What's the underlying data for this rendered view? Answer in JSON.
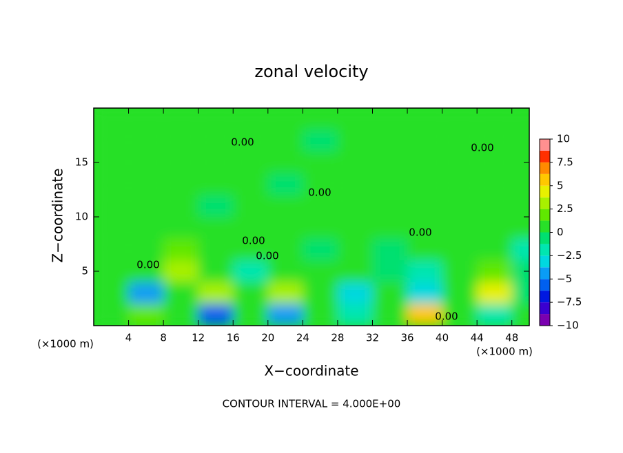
{
  "chart_data": {
    "type": "contour",
    "title": "zonal velocity",
    "xlabel": "X−coordinate",
    "ylabel": "Z−coordinate",
    "x_unit_label": "(×1000 m)",
    "footer": "CONTOUR INTERVAL = 4.000E+00",
    "xlim": [
      0,
      50
    ],
    "ylim": [
      0,
      20
    ],
    "xticks": [
      4,
      8,
      12,
      16,
      20,
      24,
      28,
      32,
      36,
      40,
      44,
      48
    ],
    "yticks": [
      5,
      10,
      15
    ],
    "x": [
      2,
      6,
      10,
      14,
      18,
      22,
      26,
      30,
      34,
      38,
      42,
      46,
      50
    ],
    "y": [
      1,
      3,
      5,
      7,
      9,
      11,
      13,
      15,
      17,
      19
    ],
    "z": [
      [
        0.5,
        2,
        1,
        -6,
        1,
        -4,
        1,
        -2,
        0.5,
        6,
        0,
        -2,
        1
      ],
      [
        0,
        -4,
        1,
        2.5,
        1,
        3,
        0.5,
        -3,
        1,
        -3,
        0.5,
        4,
        -1
      ],
      [
        0.5,
        1,
        3,
        1,
        -2,
        1,
        0,
        0.5,
        -1,
        -2,
        0.5,
        2,
        -1
      ],
      [
        1,
        0.5,
        1.5,
        1,
        0.5,
        0,
        -0.5,
        0,
        -1,
        0.5,
        0,
        1,
        -2
      ],
      [
        1,
        0.5,
        0,
        0.5,
        1,
        0.5,
        0,
        1,
        0.5,
        0,
        0.5,
        0,
        0.5
      ],
      [
        0,
        0.5,
        0,
        -0.5,
        0,
        0.5,
        0,
        0,
        0.5,
        0,
        0,
        0.5,
        0
      ],
      [
        0.5,
        0,
        0,
        0.5,
        0,
        -0.5,
        0,
        0,
        0,
        0.5,
        0,
        0,
        0.5
      ],
      [
        0.5,
        0.5,
        0,
        0,
        0.5,
        0,
        0,
        0,
        0.5,
        0,
        0,
        0.5,
        0
      ],
      [
        0,
        0.5,
        0.5,
        0,
        0,
        0,
        -0.5,
        0,
        0,
        0,
        0,
        0,
        0.5
      ],
      [
        0.5,
        0.5,
        0,
        0.5,
        0,
        0.5,
        0,
        0.5,
        0,
        0,
        0.5,
        0,
        0
      ]
    ],
    "clim": [
      -10,
      10
    ],
    "colors": [
      "#7a00b0",
      "#3a00d0",
      "#0018e0",
      "#0060f0",
      "#0a9cf5",
      "#00d8e0",
      "#00e6b0",
      "#00e070",
      "#28e028",
      "#60e800",
      "#a8f000",
      "#e8f000",
      "#ffc800",
      "#ff8a00",
      "#ff3000",
      "#ff9090"
    ],
    "cticks": [
      {
        "value": -10,
        "label": "−10"
      },
      {
        "value": -7.5,
        "label": "−7.5"
      },
      {
        "value": -5,
        "label": "−5"
      },
      {
        "value": -2.5,
        "label": "−2.5"
      },
      0,
      2.5,
      5,
      7.5,
      10
    ],
    "contour_labels": [
      {
        "value": 0,
        "label": "0.00"
      },
      {
        "value": 0,
        "label": "0.00"
      },
      {
        "value": 0,
        "label": "0.00"
      },
      {
        "value": 0,
        "label": "0.00"
      },
      {
        "value": 0,
        "label": "0.00"
      },
      {
        "value": 0,
        "label": "0.00"
      },
      {
        "value": 0,
        "label": "0.00"
      },
      {
        "value": 0,
        "label": "0.00"
      }
    ]
  }
}
